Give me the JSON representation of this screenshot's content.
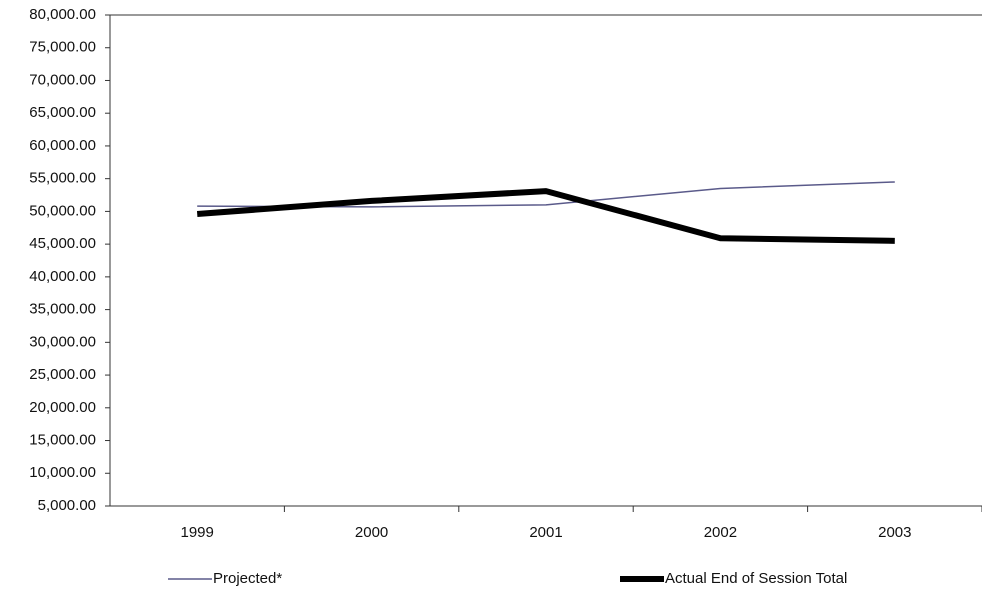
{
  "chart_data": {
    "type": "line",
    "categories": [
      "1999",
      "2000",
      "2001",
      "2002",
      "2003"
    ],
    "series": [
      {
        "name": "Projected*",
        "color": "#5a5a8a",
        "width": 1.5,
        "values": [
          50800,
          50700,
          51000,
          53500,
          54500
        ]
      },
      {
        "name": "Actual End of Session Total",
        "color": "#000000",
        "width": 6,
        "values": [
          49600,
          51600,
          53100,
          45900,
          45500
        ]
      }
    ],
    "ylim": [
      5000,
      80000
    ],
    "yticks": [
      {
        "value": 5000,
        "label": "5,000.00"
      },
      {
        "value": 10000,
        "label": "10,000.00"
      },
      {
        "value": 15000,
        "label": "15,000.00"
      },
      {
        "value": 20000,
        "label": "20,000.00"
      },
      {
        "value": 25000,
        "label": "25,000.00"
      },
      {
        "value": 30000,
        "label": "30,000.00"
      },
      {
        "value": 35000,
        "label": "35,000.00"
      },
      {
        "value": 40000,
        "label": "40,000.00"
      },
      {
        "value": 45000,
        "label": "45,000.00"
      },
      {
        "value": 50000,
        "label": "50,000.00"
      },
      {
        "value": 55000,
        "label": "55,000.00"
      },
      {
        "value": 60000,
        "label": "60,000.00"
      },
      {
        "value": 65000,
        "label": "65,000.00"
      },
      {
        "value": 70000,
        "label": "70,000.00"
      },
      {
        "value": 75000,
        "label": "75,000.00"
      },
      {
        "value": 80000,
        "label": "80,000.00"
      }
    ],
    "grid": false,
    "legend": "bottom"
  }
}
